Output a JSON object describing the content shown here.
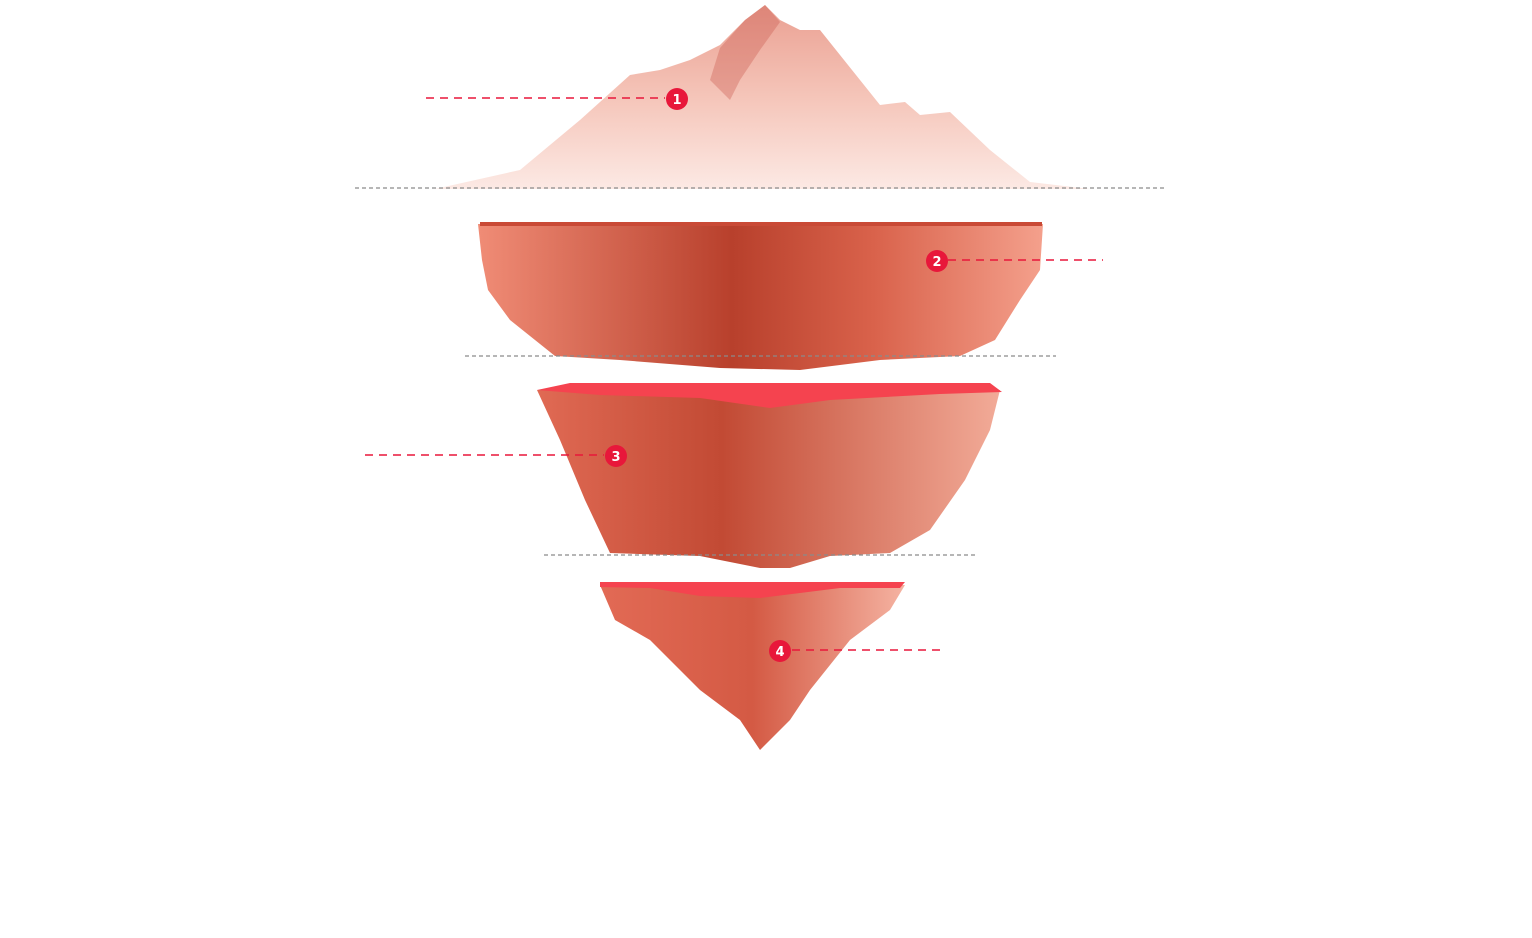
{
  "diagram": {
    "markers": [
      {
        "label": "1"
      },
      {
        "label": "2"
      },
      {
        "label": "3"
      },
      {
        "label": "4"
      }
    ],
    "colors": {
      "marker": "#e8173a",
      "tip": "#f6c2b6",
      "layer_2": "#e0664f",
      "layer_3": "#e06a54",
      "layer_4": "#ea7560",
      "cut_edge": "#f5434f",
      "water_line": "#8a8a8a"
    }
  }
}
